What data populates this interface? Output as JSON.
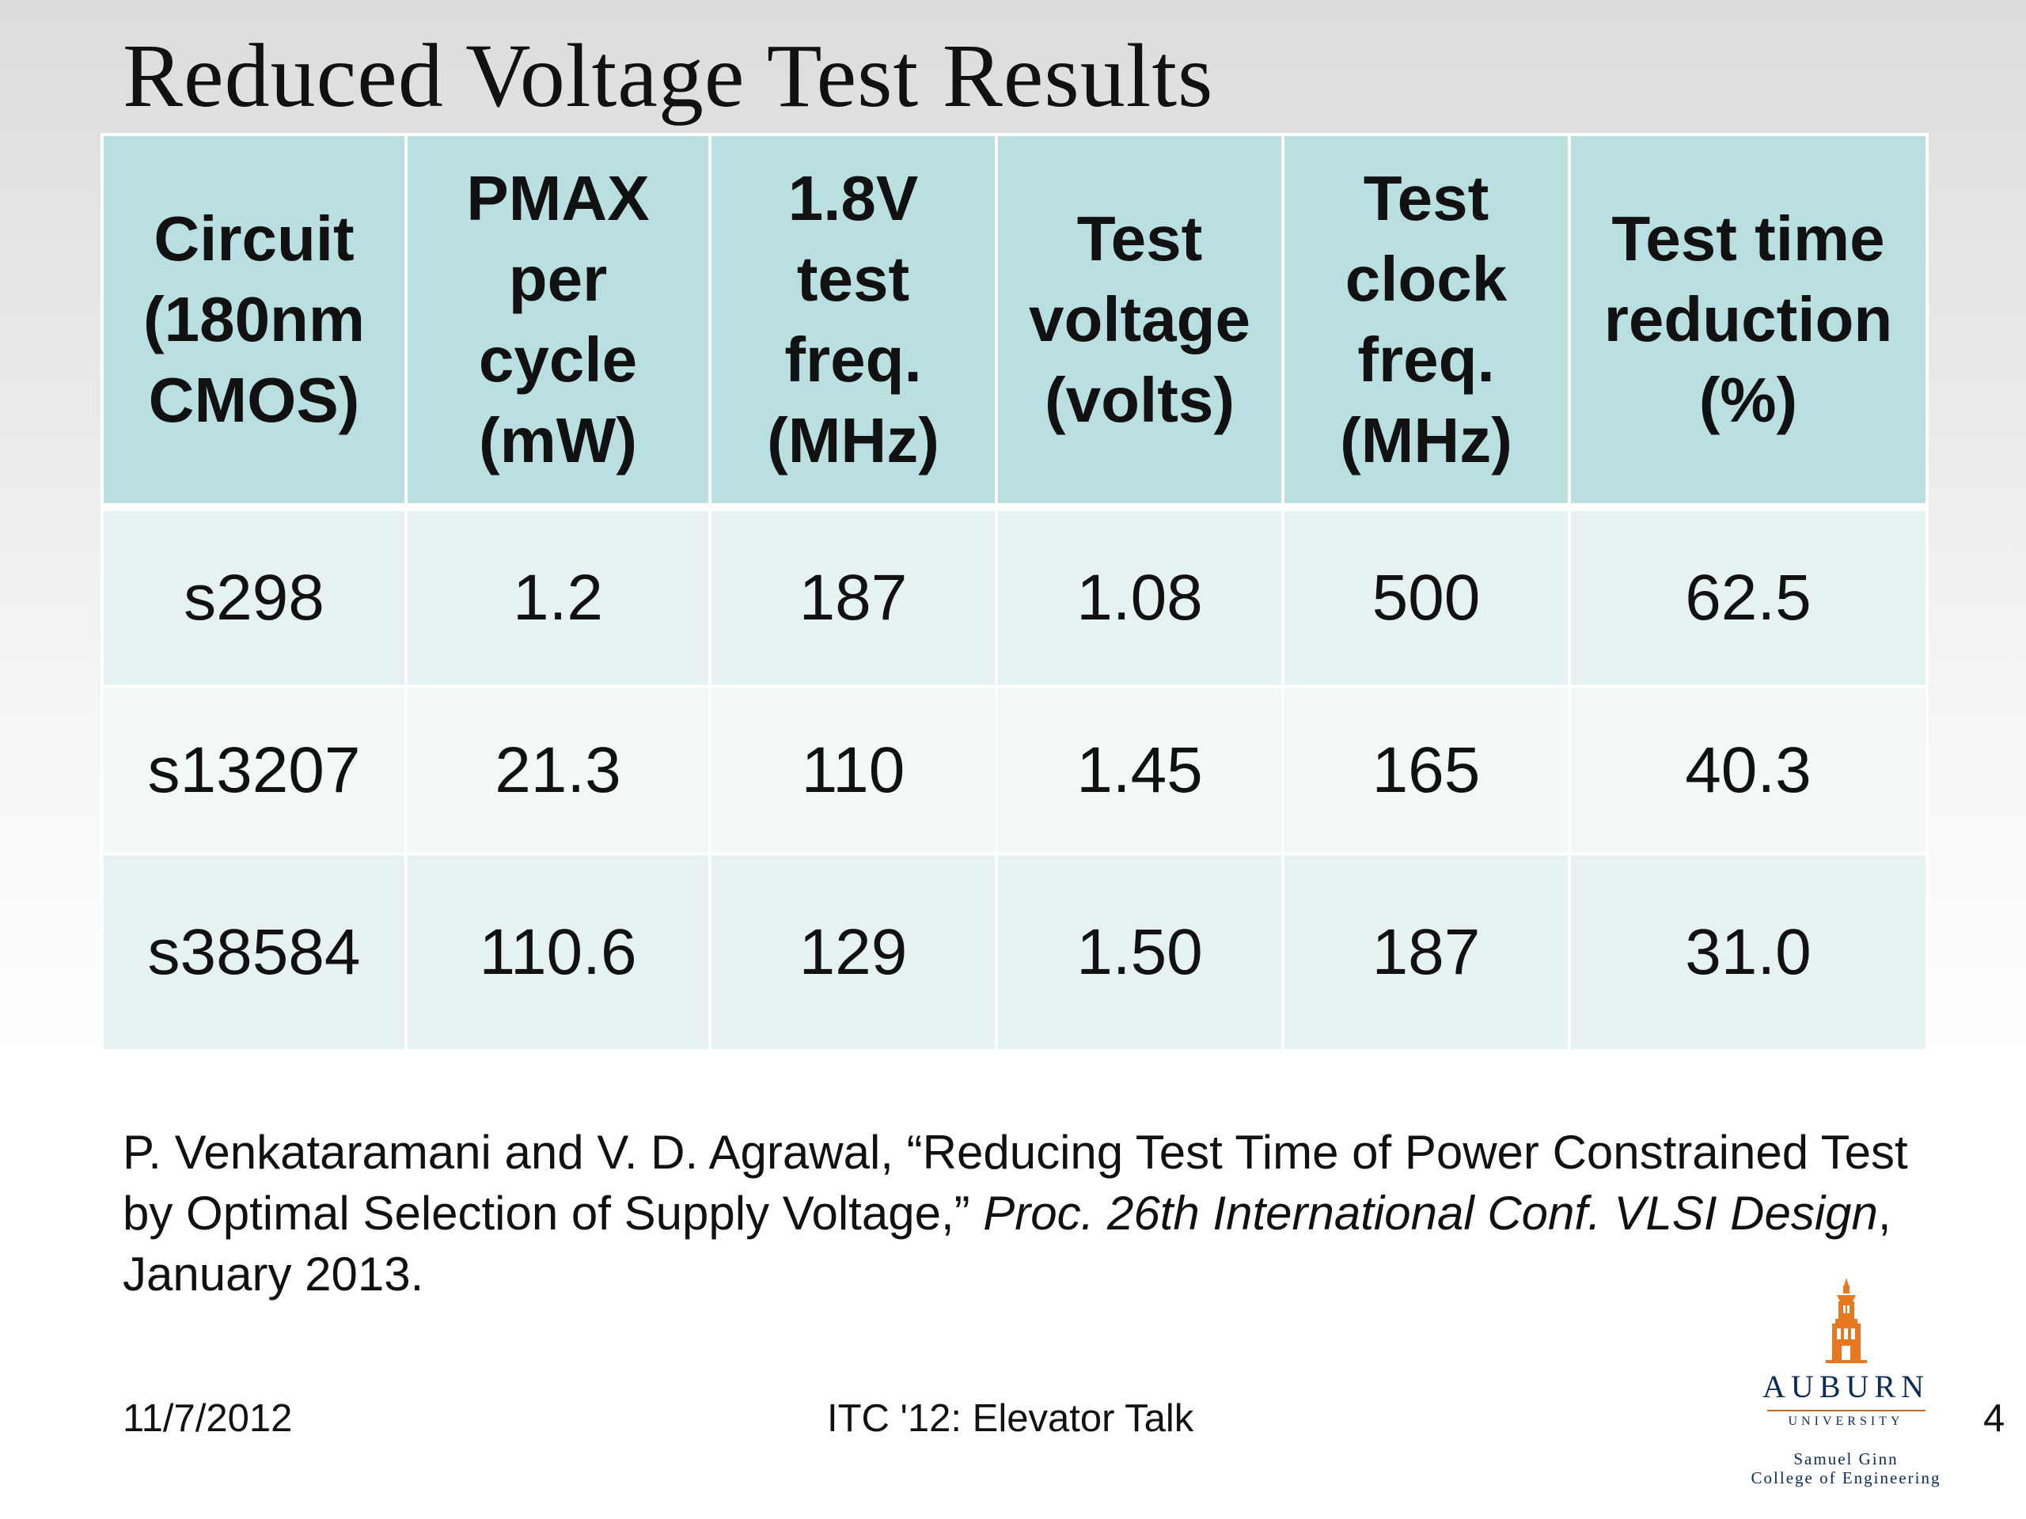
{
  "slide": {
    "title": "Reduced Voltage Test Results"
  },
  "table": {
    "headers": [
      [
        "Circuit",
        "(180nm",
        "CMOS)"
      ],
      [
        "PMAX",
        "per",
        "cycle",
        "(mW)"
      ],
      [
        "1.8V",
        "test",
        "freq.",
        "(MHz)"
      ],
      [
        "Test",
        "voltage",
        "(volts)"
      ],
      [
        "Test",
        "clock",
        "freq.",
        "(MHz)"
      ],
      [
        "Test time",
        "reduction",
        "(%)"
      ]
    ],
    "rows": [
      [
        "s298",
        "1.2",
        "187",
        "1.08",
        "500",
        "62.5"
      ],
      [
        "s13207",
        "21.3",
        "110",
        "1.45",
        "165",
        "40.3"
      ],
      [
        "s38584",
        "110.6",
        "129",
        "1.50",
        "187",
        "31.0"
      ]
    ]
  },
  "citation": {
    "text1": "P. Venkataramani and V. D. Agrawal, “Reducing Test Time of Power Constrained Test by Optimal Selection of Supply Voltage,” ",
    "italic1": "Proc. 26th International Conf. VLSI Design",
    "text2": ", January 2013."
  },
  "footer": {
    "date": "11/7/2012",
    "talk": "ITC '12: Elevator Talk",
    "page": "4"
  },
  "logo": {
    "name": "AUBURN",
    "sub": "UNIVERSITY",
    "college_line1": "Samuel Ginn",
    "college_line2": "College of Engineering",
    "icon": "tower-icon",
    "accent_color": "#e87722",
    "text_color": "#0b2a55"
  },
  "colors": {
    "header_fill": "#b9dfe1",
    "row_fill_a": "#e6f2f2",
    "row_fill_b": "#f2f7f8"
  }
}
